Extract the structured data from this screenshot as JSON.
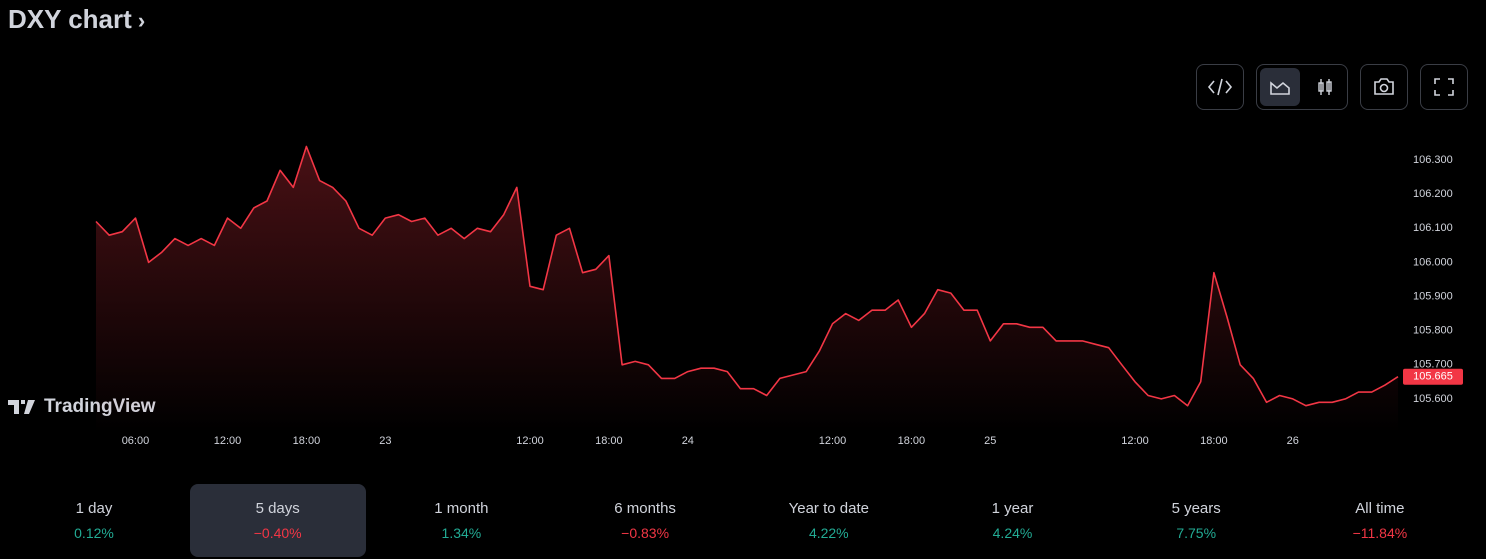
{
  "header": {
    "title": "DXY chart"
  },
  "watermark": "TradingView",
  "chart_data": {
    "type": "area",
    "categories": [
      null,
      null,
      null,
      "06:00",
      null,
      null,
      null,
      null,
      null,
      null,
      "12:00",
      null,
      null,
      null,
      null,
      null,
      "18:00",
      null,
      null,
      null,
      null,
      null,
      "23",
      null,
      null,
      null,
      null,
      null,
      null,
      null,
      null,
      null,
      null,
      "12:00",
      null,
      null,
      null,
      null,
      null,
      "18:00",
      null,
      null,
      null,
      null,
      null,
      "24",
      null,
      null,
      null,
      null,
      null,
      null,
      null,
      null,
      null,
      null,
      "12:00",
      null,
      null,
      null,
      null,
      null,
      "18:00",
      null,
      null,
      null,
      null,
      null,
      "25",
      null,
      null,
      null,
      null,
      null,
      null,
      null,
      null,
      null,
      null,
      "12:00",
      null,
      null,
      null,
      null,
      null,
      "18:00",
      null,
      null,
      null,
      null,
      null,
      "26",
      null,
      null,
      null,
      null,
      null,
      null,
      null,
      null
    ],
    "series": [
      {
        "color": "#f23645",
        "values": [
          106.12,
          106.08,
          106.09,
          106.13,
          106.0,
          106.03,
          106.07,
          106.05,
          106.07,
          106.05,
          106.13,
          106.1,
          106.16,
          106.18,
          106.27,
          106.22,
          106.34,
          106.24,
          106.22,
          106.18,
          106.1,
          106.08,
          106.13,
          106.14,
          106.12,
          106.13,
          106.08,
          106.1,
          106.07,
          106.1,
          106.09,
          106.14,
          106.22,
          105.93,
          105.92,
          106.08,
          106.1,
          105.97,
          105.98,
          106.02,
          105.7,
          105.71,
          105.7,
          105.66,
          105.66,
          105.68,
          105.69,
          105.69,
          105.68,
          105.63,
          105.63,
          105.61,
          105.66,
          105.67,
          105.68,
          105.74,
          105.82,
          105.85,
          105.83,
          105.86,
          105.86,
          105.89,
          105.81,
          105.85,
          105.92,
          105.91,
          105.86,
          105.86,
          105.77,
          105.82,
          105.82,
          105.81,
          105.81,
          105.77,
          105.77,
          105.77,
          105.76,
          105.75,
          105.7,
          105.65,
          105.61,
          105.6,
          105.61,
          105.58,
          105.65,
          105.97,
          105.84,
          105.7,
          105.66,
          105.59,
          105.61,
          105.6,
          105.58,
          105.59,
          105.59,
          105.6,
          105.62,
          105.62,
          105.64,
          105.665
        ]
      }
    ],
    "ylim": [
      105.5,
      106.4
    ],
    "yticks": [
      {
        "value": 105.6,
        "label": "105.600"
      },
      {
        "value": 105.7,
        "label": "105.700"
      },
      {
        "value": 105.8,
        "label": "105.800"
      },
      {
        "value": 105.9,
        "label": "105.900"
      },
      {
        "value": 106.0,
        "label": "106.000"
      },
      {
        "value": 106.1,
        "label": "106.100"
      },
      {
        "value": 106.2,
        "label": "106.200"
      },
      {
        "value": 106.3,
        "label": "106.300"
      }
    ],
    "grid": false
  },
  "periods": {
    "selected": 1,
    "items": [
      {
        "label": "1 day",
        "change": "0.12%",
        "color": "#22ab94"
      },
      {
        "label": "5 days",
        "change": "−0.40%",
        "color": "#f23645"
      },
      {
        "label": "1 month",
        "change": "1.34%",
        "color": "#22ab94"
      },
      {
        "label": "6 months",
        "change": "−0.83%",
        "color": "#f23645"
      },
      {
        "label": "Year to date",
        "change": "4.22%",
        "color": "#22ab94"
      },
      {
        "label": "1 year",
        "change": "4.24%",
        "color": "#22ab94"
      },
      {
        "label": "5 years",
        "change": "7.75%",
        "color": "#22ab94"
      },
      {
        "label": "All time",
        "change": "−11.84%",
        "color": "#f23645"
      }
    ]
  }
}
